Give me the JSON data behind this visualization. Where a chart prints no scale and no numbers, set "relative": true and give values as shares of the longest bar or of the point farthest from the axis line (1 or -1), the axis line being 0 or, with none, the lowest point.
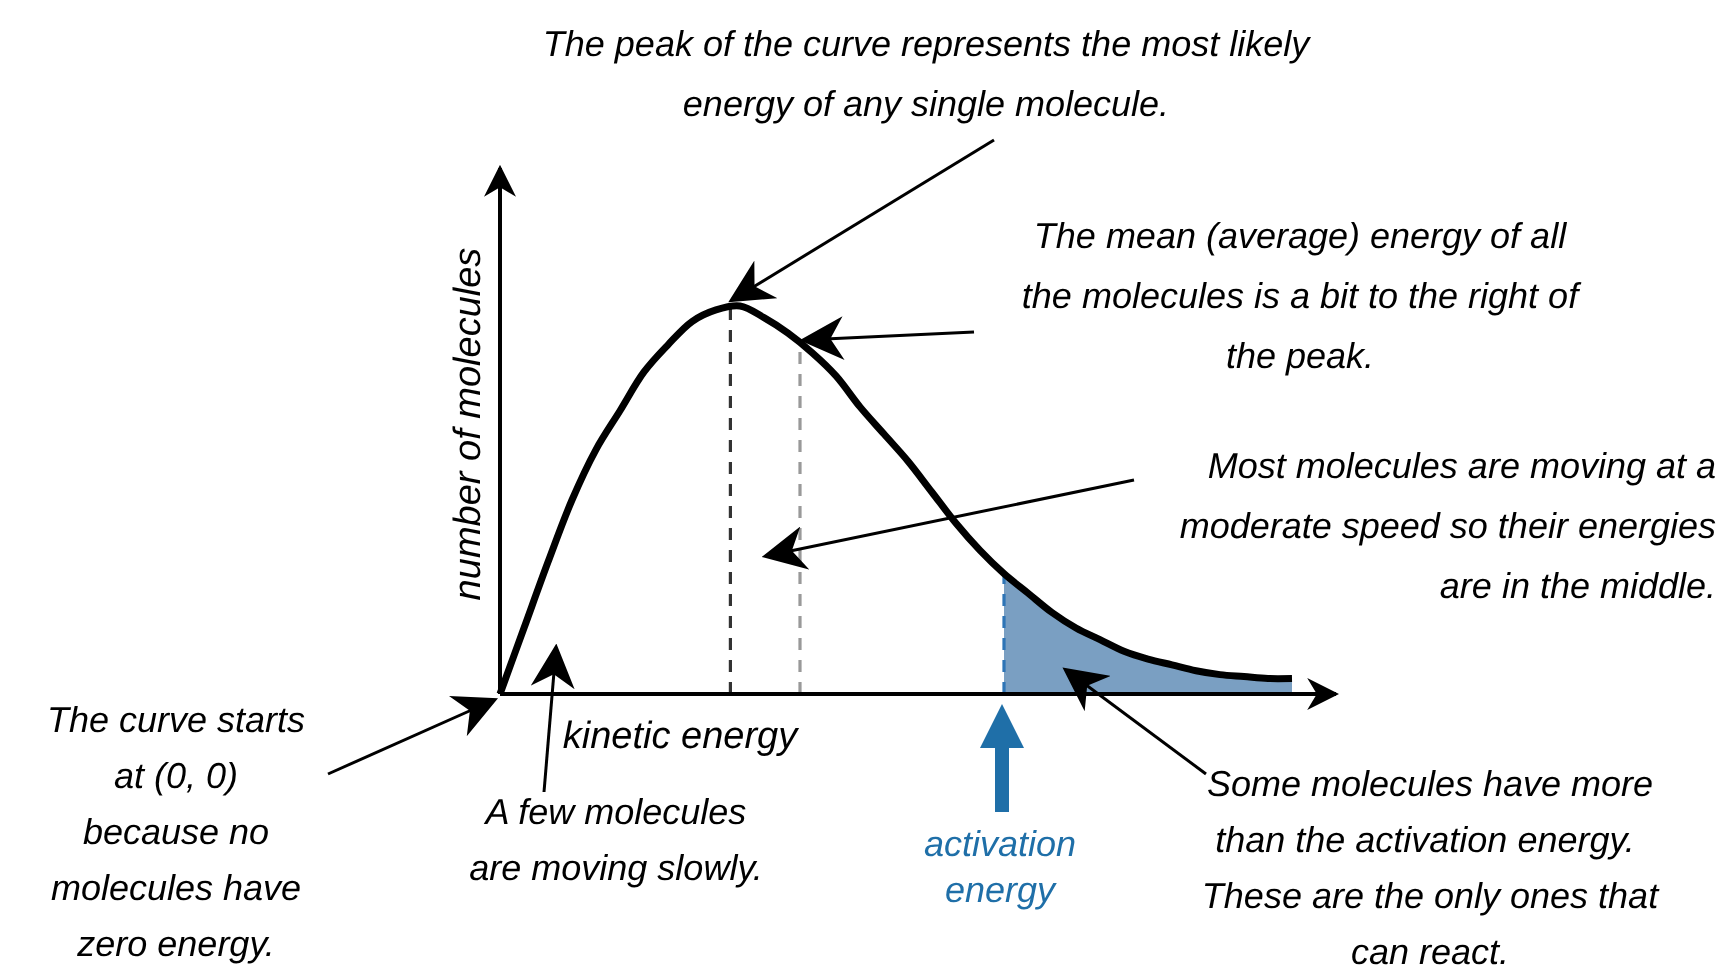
{
  "chart_data": {
    "type": "line",
    "relative": true,
    "tick_labels": false,
    "xlabel": "kinetic energy",
    "ylabel": "number of molecules",
    "categories": [
      null,
      null,
      null,
      null,
      null,
      null,
      null,
      null,
      null,
      null,
      null,
      null,
      null,
      null,
      null,
      null,
      null,
      null,
      null,
      null,
      null,
      null,
      null,
      null,
      null,
      null,
      null,
      null,
      null,
      null,
      null,
      null,
      null,
      null
    ],
    "series": [
      {
        "type": "area",
        "color": "#7a9fc2",
        "values": [
          null,
          null,
          null,
          null,
          null,
          null,
          null,
          null,
          null,
          null,
          null,
          null,
          null,
          null,
          null,
          null,
          null,
          null,
          null,
          null,
          null,
          0.31,
          0.26,
          0.21,
          0.17,
          0.14,
          0.11,
          0.09,
          0.075,
          0.06,
          0.05,
          0.045,
          0.04,
          0.04
        ]
      },
      {
        "color": "#000000",
        "values": [
          0,
          0.17,
          0.34,
          0.5,
          0.63,
          0.73,
          0.83,
          0.9,
          0.96,
          0.99,
          1,
          0.97,
          0.93,
          0.88,
          0.82,
          0.74,
          0.67,
          0.6,
          0.52,
          0.44,
          0.37,
          0.31,
          0.26,
          0.21,
          0.17,
          0.14,
          0.11,
          0.09,
          0.075,
          0.06,
          0.05,
          0.045,
          0.04,
          0.04
        ]
      }
    ],
    "annotations": [
      "The peak of the curve represents the most likely energy of any single molecule.",
      "The mean (average) energy of all the molecules is a bit to the right of the peak.",
      "Most molecules are moving at a moderate speed so their energies are in the middle.",
      "The curve starts at (0, 0) because no molecules have zero energy.",
      "A few molecules are moving slowly.",
      "Some molecules have more than the activation energy.  These are the only ones that can react.",
      "activation energy"
    ]
  }
}
